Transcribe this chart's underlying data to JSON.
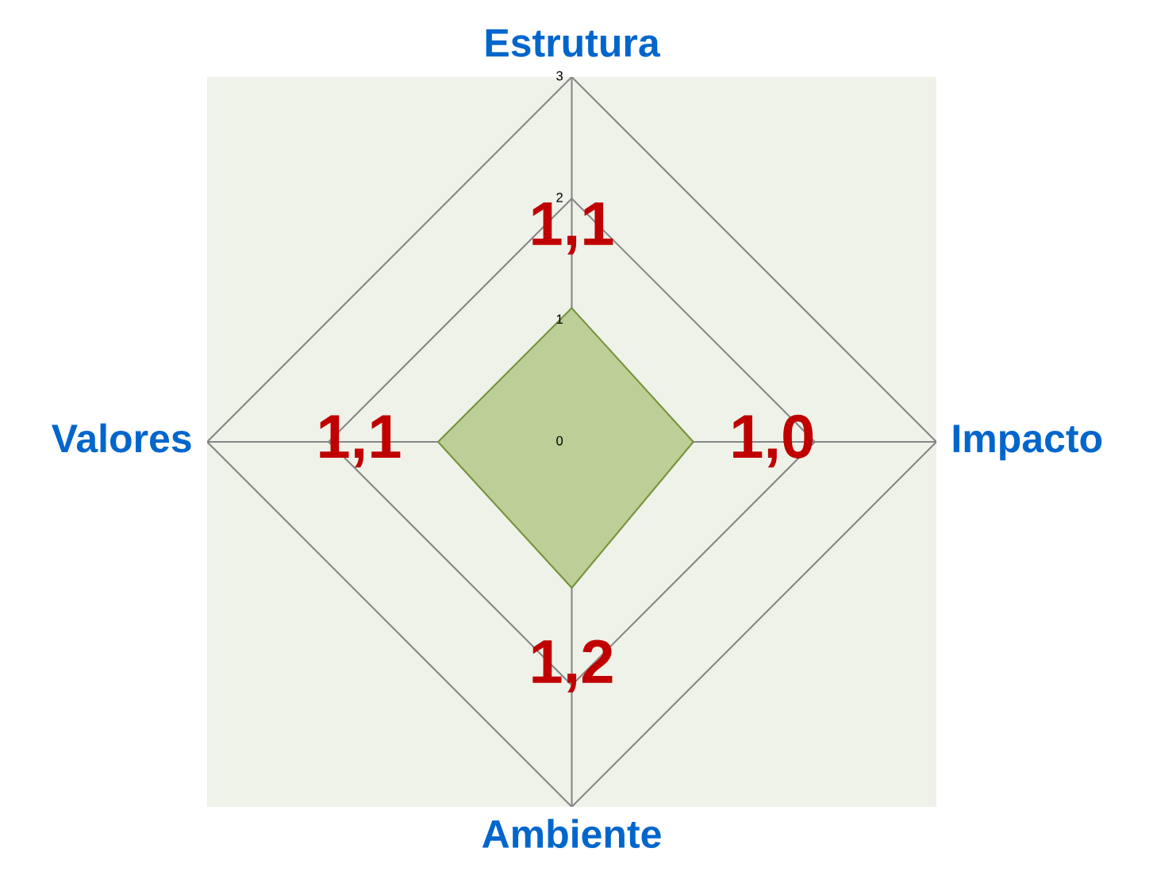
{
  "chart_data": {
    "type": "radar",
    "categories": [
      "Estrutura",
      "Impacto",
      "Ambiente",
      "Valores"
    ],
    "series": [
      {
        "color": "#bbcf96",
        "values": [
          1.1,
          1.0,
          1.2,
          1.1
        ],
        "value_labels": [
          "1,1",
          "1,0",
          "1,2",
          "1,1"
        ]
      }
    ],
    "ylim": [
      0,
      3
    ],
    "yticks": [
      0,
      1,
      2,
      3
    ],
    "grid": true,
    "marker": "none"
  }
}
